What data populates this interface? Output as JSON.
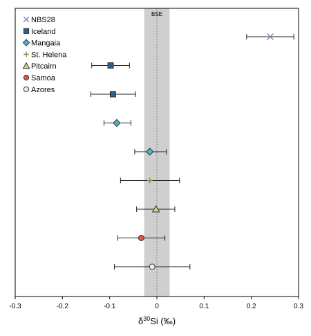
{
  "chart_data": {
    "type": "scatter",
    "title": "",
    "xlabel": {
      "prefix": "δ",
      "sup": "30",
      "suffix": "Si (‰)"
    },
    "ylabel": "",
    "xlim": [
      -0.3,
      0.3
    ],
    "xticks": [
      -0.3,
      -0.2,
      -0.1,
      0,
      0.1,
      0.2,
      0.3
    ],
    "xtick_labels": [
      "-0.3",
      "-0.2",
      "-0.1",
      "0",
      "0.1",
      "0.2",
      "0.3"
    ],
    "grid": false,
    "legend_position": "top-left",
    "reference_band": {
      "label": "BSE",
      "center": 0.0,
      "min": -0.027,
      "max": 0.027,
      "color": "#cfcfcf"
    },
    "series": [
      {
        "name": "NBS28",
        "marker": "x",
        "color": "#8a82b8",
        "points": [
          {
            "x": 0.24,
            "err_low": 0.19,
            "err_high": 0.29
          }
        ]
      },
      {
        "name": "Iceland",
        "marker": "square",
        "color": "#2f5f87",
        "points": [
          {
            "x": -0.098,
            "err_low": -0.138,
            "err_high": -0.058
          },
          {
            "x": -0.093,
            "err_low": -0.14,
            "err_high": -0.045
          }
        ]
      },
      {
        "name": "Mangaia",
        "marker": "diamond",
        "color": "#4fb3c4",
        "points": [
          {
            "x": -0.085,
            "err_low": -0.112,
            "err_high": -0.055
          },
          {
            "x": -0.015,
            "err_low": -0.047,
            "err_high": 0.02
          }
        ]
      },
      {
        "name": "St. Helena",
        "marker": "plus",
        "color": "#8a8a3a",
        "points": [
          {
            "x": -0.015,
            "err_low": -0.077,
            "err_high": 0.048
          }
        ]
      },
      {
        "name": "Pitcairn",
        "marker": "triangle",
        "color": "#c5d48a",
        "points": [
          {
            "x": -0.002,
            "err_low": -0.043,
            "err_high": 0.038
          }
        ]
      },
      {
        "name": "Samoa",
        "marker": "circle",
        "color": "#e0524d",
        "points": [
          {
            "x": -0.033,
            "err_low": -0.083,
            "err_high": 0.017
          }
        ]
      },
      {
        "name": "Azores",
        "marker": "circle",
        "color": "#fbe8e6",
        "points": [
          {
            "x": -0.01,
            "err_low": -0.09,
            "err_high": 0.07
          }
        ]
      }
    ]
  }
}
